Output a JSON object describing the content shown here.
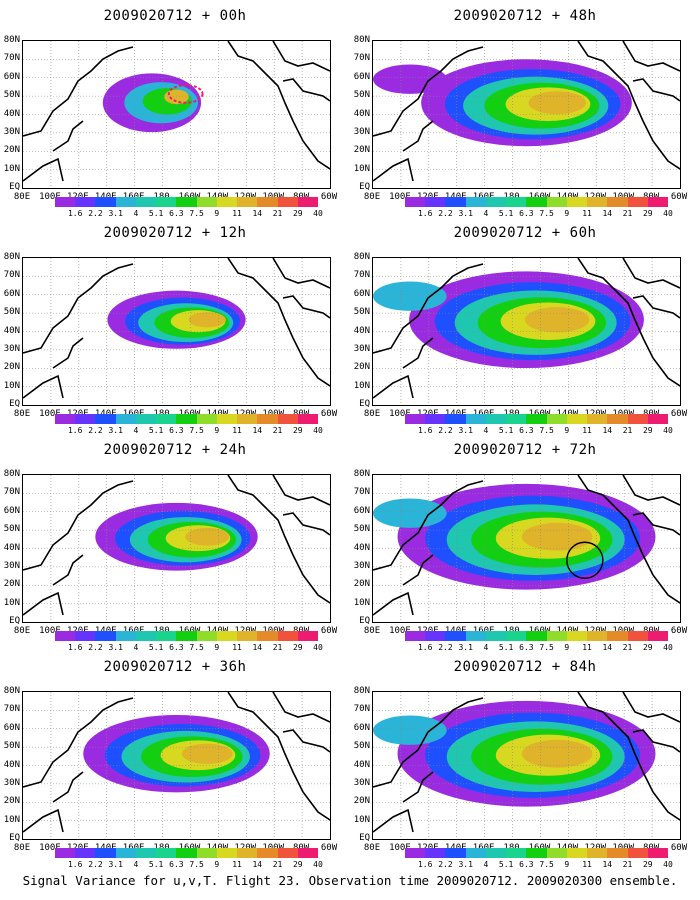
{
  "caption": "Signal Variance for u,v,T. Flight 23. Observation time 2009020712. 2009020300 ensemble.",
  "lat_labels": [
    "80N",
    "70N",
    "60N",
    "50N",
    "40N",
    "30N",
    "20N",
    "10N",
    "EQ"
  ],
  "lon_labels": [
    "80E",
    "100E",
    "120E",
    "140E",
    "160E",
    "180",
    "160W",
    "140W",
    "120W",
    "100W",
    "80W",
    "60W"
  ],
  "colorbar": {
    "labels": [
      "1.6",
      "2.2",
      "3.1",
      "4",
      "5.1",
      "6.3",
      "7.5",
      "9",
      "11",
      "14",
      "21",
      "29",
      "40"
    ],
    "colors": [
      "#9a2be0",
      "#6633ff",
      "#1e50ff",
      "#2ab4d8",
      "#1fc6b0",
      "#19d48c",
      "#12cf12",
      "#8fdc2a",
      "#d8d820",
      "#e0b42a",
      "#e58a28",
      "#f0523c",
      "#ee1c70"
    ]
  },
  "panels": [
    {
      "title": "2009020712 + 00h",
      "lead_h": 0
    },
    {
      "title": "2009020712 + 48h",
      "lead_h": 48
    },
    {
      "title": "2009020712 + 12h",
      "lead_h": 12
    },
    {
      "title": "2009020712 + 60h",
      "lead_h": 60
    },
    {
      "title": "2009020712 + 24h",
      "lead_h": 24
    },
    {
      "title": "2009020712 + 72h",
      "lead_h": 72
    },
    {
      "title": "2009020712 + 36h",
      "lead_h": 36
    },
    {
      "title": "2009020712 + 84h",
      "lead_h": 84
    }
  ]
}
